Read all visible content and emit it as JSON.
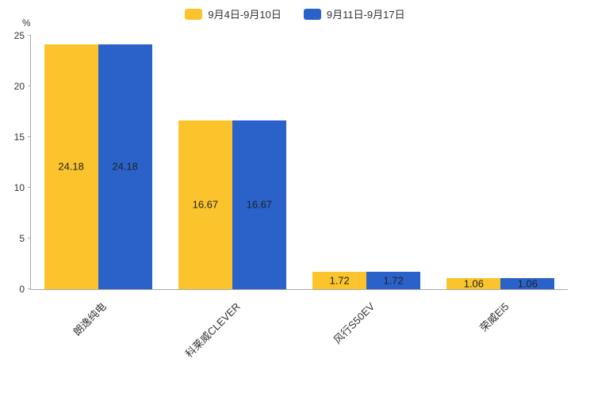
{
  "chart_data": {
    "type": "bar",
    "title": "",
    "ylabel": "%",
    "xlabel": "",
    "ylim": [
      0,
      25
    ],
    "yticks": [
      0,
      5,
      10,
      15,
      20,
      25
    ],
    "grid": false,
    "legend_position": "top",
    "categories": [
      "朗逸纯电",
      "科莱威CLEVER",
      "风行S50EV",
      "荣威Ei5"
    ],
    "series": [
      {
        "name": "9月4日-9月10日",
        "color": "#FBC42D",
        "values": [
          24.18,
          16.67,
          1.72,
          1.06
        ]
      },
      {
        "name": "9月11日-9月17日",
        "color": "#2A62C9",
        "values": [
          24.18,
          16.67,
          1.72,
          1.06
        ]
      }
    ]
  },
  "legend": {
    "items": [
      {
        "label": "9月4日-9月10日",
        "color": "#FBC42D"
      },
      {
        "label": "9月11日-9月17日",
        "color": "#2A62C9"
      }
    ]
  },
  "y_axis": {
    "unit": "%"
  }
}
